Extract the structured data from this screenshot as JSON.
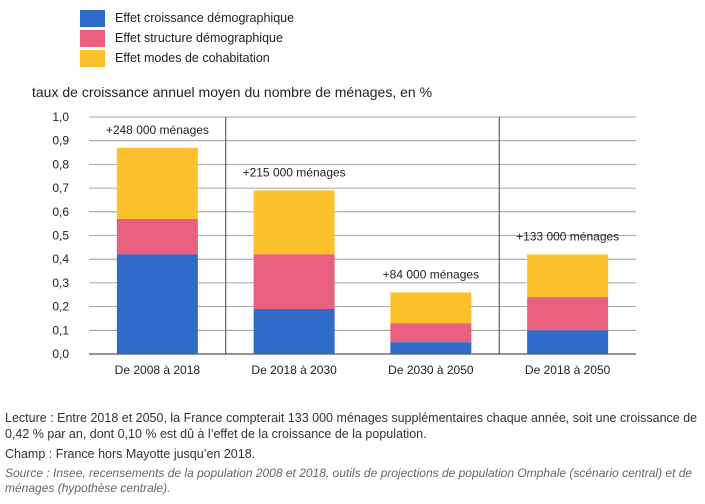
{
  "legend": [
    {
      "label": "Effet croissance démographique",
      "color": "#2f6bc9"
    },
    {
      "label": "Effet structure démographique",
      "color": "#e8607e"
    },
    {
      "label": "Effet modes de cohabitation",
      "color": "#fdc12c"
    }
  ],
  "chart_data": {
    "type": "bar",
    "stacked": true,
    "title": "taux de croissance annuel moyen du nombre de ménages, en %",
    "categories": [
      "De 2008 à 2018",
      "De 2018 à 2030",
      "De 2030 à 2050",
      "De 2018 à 2050"
    ],
    "series": [
      {
        "name": "Effet croissance démographique",
        "color": "#2f6bc9",
        "values": [
          0.42,
          0.19,
          0.05,
          0.1
        ]
      },
      {
        "name": "Effet structure démographique",
        "color": "#e8607e",
        "values": [
          0.15,
          0.23,
          0.08,
          0.14
        ]
      },
      {
        "name": "Effet modes de cohabitation",
        "color": "#fdc12c",
        "values": [
          0.3,
          0.27,
          0.13,
          0.18
        ]
      }
    ],
    "data_labels": [
      "+248 000 ménages",
      "+215 000 ménages",
      "+84 000 ménages",
      "+133 000 ménages"
    ],
    "ylim": [
      0,
      1.0
    ],
    "yticks": [
      "0,0",
      "0,1",
      "0,2",
      "0,3",
      "0,4",
      "0,5",
      "0,6",
      "0,7",
      "0,8",
      "0,9",
      "1,0"
    ],
    "grid": true
  },
  "notes": {
    "lecture": "Lecture : Entre 2018 et 2050, la France compterait 133 000 ménages supplémentaires chaque année, soit une croissance de 0,42 % par an, dont 0,10 % est dû à l’effet de la croissance de la population.",
    "champ": "Champ : France hors Mayotte jusqu’en 2018.",
    "source": "Source : Insee, recensements de la population 2008 et 2018, outils de projections de population Omphale (scénario central) et de ménages (hypothèse centrale)."
  }
}
